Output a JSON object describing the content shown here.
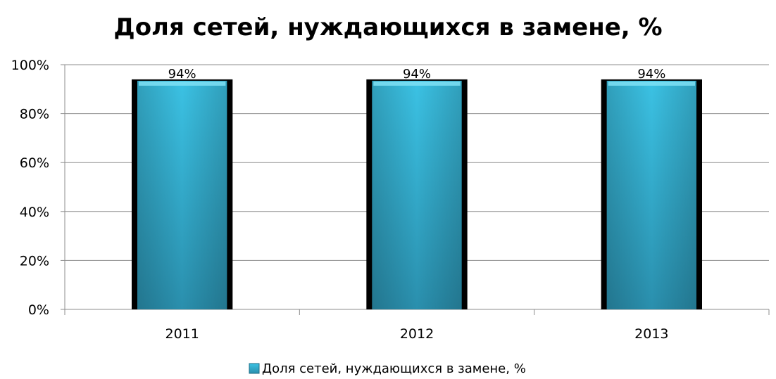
{
  "chart_data": {
    "type": "bar",
    "title": "Доля сетей, нуждающихся в замене, %",
    "categories": [
      "2011",
      "2012",
      "2013"
    ],
    "series": [
      {
        "name": "Доля сетей, нуждающихся в замене, %",
        "values": [
          94,
          94,
          94
        ],
        "data_labels": [
          "94%",
          "94%",
          "94%"
        ],
        "color": "#31B6D8"
      }
    ],
    "ylim": [
      0,
      100
    ],
    "yticks": [
      0,
      20,
      40,
      60,
      80,
      100
    ],
    "ytick_labels": [
      "0%",
      "20%",
      "40%",
      "60%",
      "80%",
      "100%"
    ],
    "xlabel": "",
    "ylabel": "",
    "grid": true,
    "legend": "bottom",
    "bar_outline_color": "#000000",
    "gridline_color": "#8C8C8C"
  }
}
